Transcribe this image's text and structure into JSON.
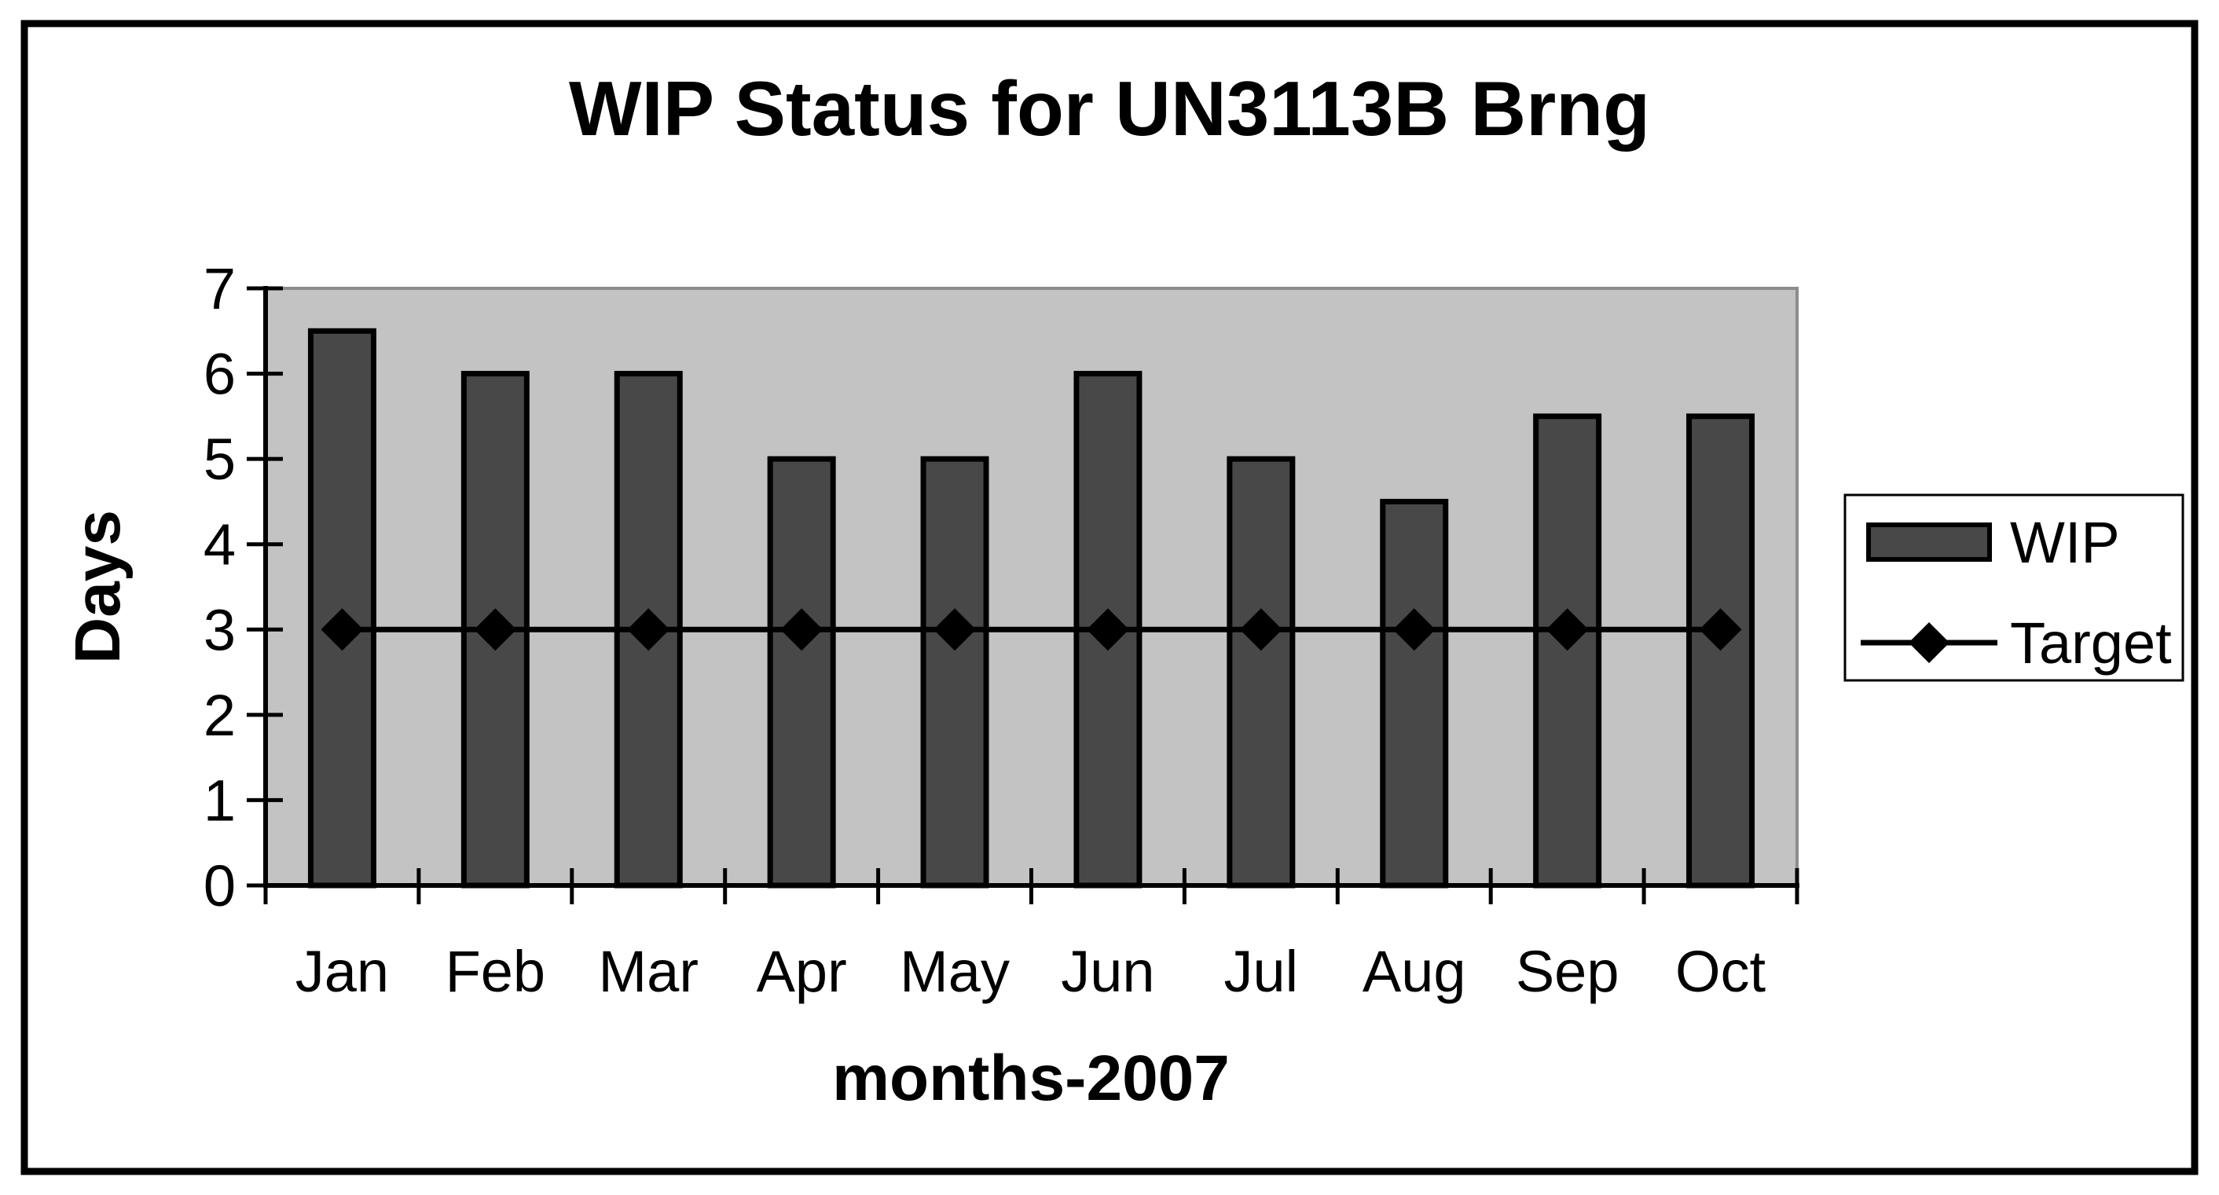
{
  "chart_data": {
    "type": "bar",
    "title": "WIP Status for UN3113B Brng",
    "xlabel": "months-2007",
    "ylabel": "Days",
    "categories": [
      "Jan",
      "Feb",
      "Mar",
      "Apr",
      "May",
      "Jun",
      "Jul",
      "Aug",
      "Sep",
      "Oct"
    ],
    "series": [
      {
        "name": "WIP",
        "type": "bar",
        "values": [
          6.5,
          6,
          6,
          5,
          5,
          6,
          5,
          4.5,
          5.5,
          5.5
        ]
      },
      {
        "name": "Target",
        "type": "line",
        "values": [
          3,
          3,
          3,
          3,
          3,
          3,
          3,
          3,
          3,
          3
        ]
      }
    ],
    "ylim": [
      0,
      7
    ],
    "yticks": [
      0,
      1,
      2,
      3,
      4,
      5,
      6,
      7
    ],
    "grid": false,
    "legend_position": "right",
    "colors": {
      "background": "#ffffff",
      "frame_border": "#000000",
      "plot_bg": "#c3c3c3",
      "plot_border": "#8c8c8c",
      "bar_fill": "#484848",
      "bar_border": "#000000",
      "target_line": "#000000",
      "marker_fill": "#000000",
      "text": "#000000",
      "legend_bg": "#ffffff",
      "legend_border": "#000000"
    }
  }
}
